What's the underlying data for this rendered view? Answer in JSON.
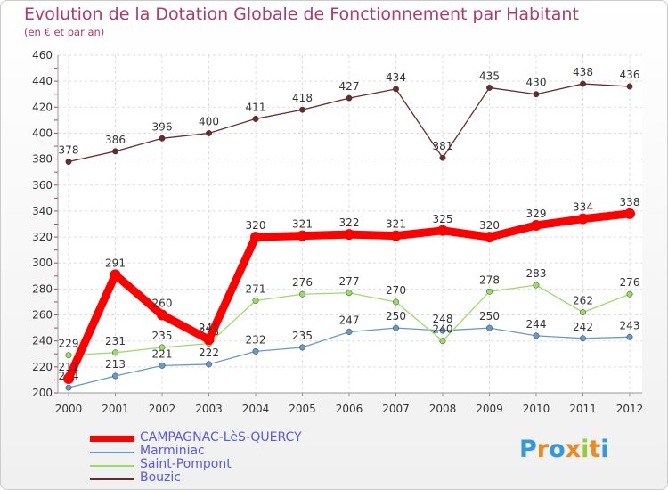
{
  "chart_data": {
    "type": "line",
    "title": "Evolution de la Dotation Globale de Fonctionnement par Habitant",
    "subtitle": "(en € et par an)",
    "xlabel": "",
    "ylabel": "",
    "x": [
      "2000",
      "2001",
      "2002",
      "2003",
      "2004",
      "2005",
      "2006",
      "2007",
      "2008",
      "2009",
      "2010",
      "2011",
      "2012"
    ],
    "ylim": [
      200,
      460
    ],
    "yticks": [
      200,
      220,
      240,
      260,
      280,
      300,
      320,
      340,
      360,
      380,
      400,
      420,
      440,
      460
    ],
    "grid": true,
    "legend": "bottom-left",
    "series": [
      {
        "name": "CAMPAGNAC-LèS-QUERCY",
        "color": "#ff0000",
        "values": [
          211,
          291,
          260,
          241,
          320,
          321,
          322,
          321,
          325,
          320,
          329,
          334,
          338
        ]
      },
      {
        "name": "Marminiac",
        "color": "#6699cc",
        "values": [
          204,
          213,
          221,
          222,
          232,
          235,
          247,
          250,
          248,
          250,
          244,
          242,
          243
        ]
      },
      {
        "name": "Saint-Pompont",
        "color": "#99dd66",
        "values": [
          229,
          231,
          235,
          238,
          271,
          276,
          277,
          270,
          240,
          278,
          283,
          262,
          276
        ]
      },
      {
        "name": "Bouzic",
        "color": "#6b2a2a",
        "values": [
          378,
          386,
          396,
          400,
          411,
          418,
          427,
          434,
          381,
          435,
          430,
          438,
          436
        ]
      }
    ]
  },
  "logo": {
    "text": "Proxiti",
    "letters": [
      "P",
      "r",
      "o",
      "x",
      "i",
      "t",
      "i"
    ],
    "colors": [
      "#3399dd",
      "#ee8822",
      "#3399dd",
      "#ee8822",
      "#99cc33",
      "#ee8822",
      "#3399dd"
    ]
  }
}
